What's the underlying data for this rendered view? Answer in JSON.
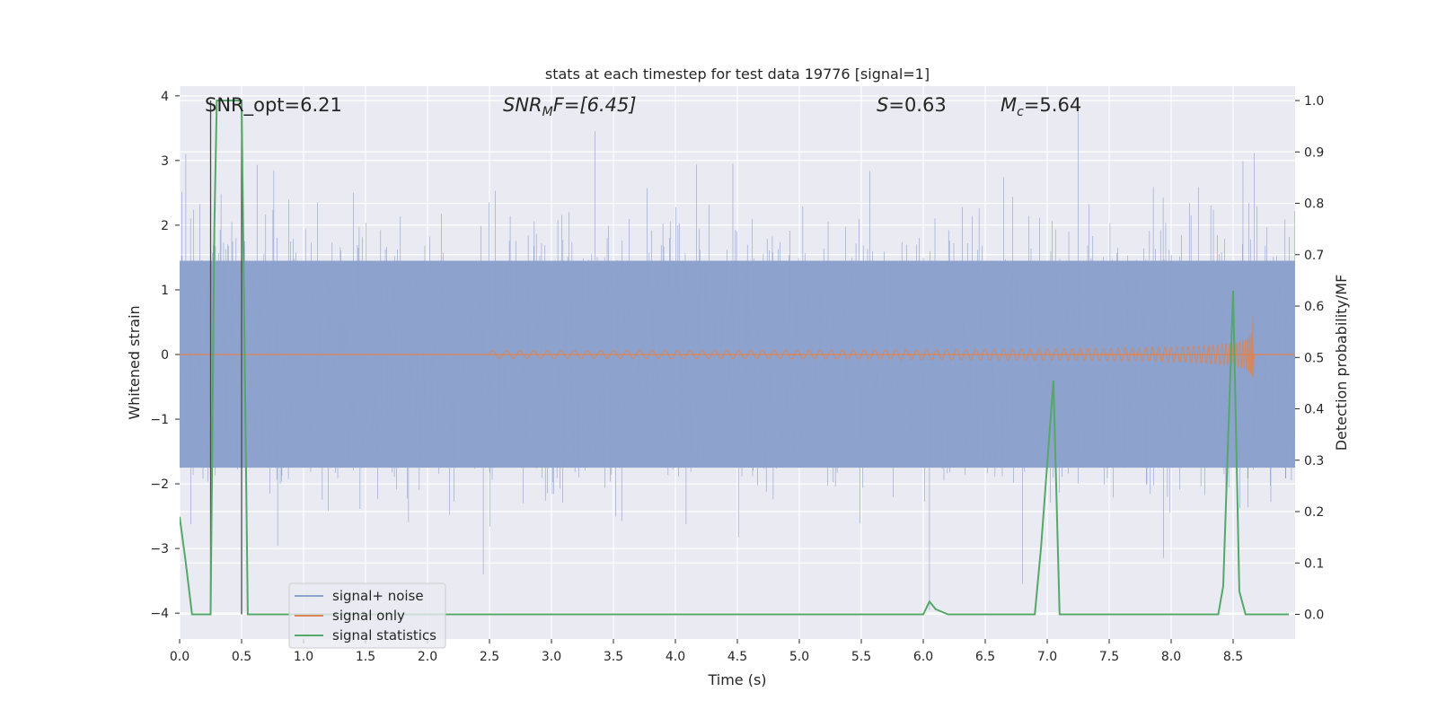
{
  "chart_data": {
    "type": "line",
    "title": "stats at each timestep for test data 19776 [signal=1]",
    "xlabel": "Time (s)",
    "ylabel": "Whitened strain",
    "y2label": "Detection probability/MF",
    "xlim": [
      0.0,
      9.0
    ],
    "ylim": [
      -4.4,
      4.15
    ],
    "y2lim": [
      -0.048,
      1.028
    ],
    "xticks": [
      "0.0",
      "0.5",
      "1.0",
      "1.5",
      "2.0",
      "2.5",
      "3.0",
      "3.5",
      "4.0",
      "4.5",
      "5.0",
      "5.5",
      "6.0",
      "6.5",
      "7.0",
      "7.5",
      "8.0",
      "8.5"
    ],
    "yticks": [
      "4",
      "3",
      "2",
      "1",
      "0",
      "−1",
      "−2",
      "−3",
      "−4"
    ],
    "y2ticks": [
      "1.0",
      "0.9",
      "0.8",
      "0.7",
      "0.6",
      "0.5",
      "0.4",
      "0.3",
      "0.2",
      "0.1",
      "0.0"
    ],
    "annotations": {
      "snr_opt": "SNR_opt=6.21",
      "snr_mf_sym": "SNR",
      "snr_mf_sub": "M",
      "snr_mf_rest": "F=[6.45]",
      "s_sym": "S",
      "s_rest": "=0.63",
      "mc_sym": "M",
      "mc_sub": "c",
      "mc_rest": "=5.64"
    },
    "series": [
      {
        "name": "signal+ noise",
        "color": "#8da2cd",
        "style": "noise band",
        "core_band": [
          -1.75,
          1.45
        ],
        "tallest_spikes": [
          {
            "t": 0.05,
            "v": 3.1
          },
          {
            "t": 0.5,
            "v": 3.1
          },
          {
            "t": 3.35,
            "v": 3.45
          },
          {
            "t": 7.25,
            "v": 3.75
          },
          {
            "t": 2.45,
            "v": -3.4
          },
          {
            "t": 6.05,
            "v": -3.95
          },
          {
            "t": 6.8,
            "v": -3.55
          }
        ]
      },
      {
        "name": "signal only",
        "color": "#dd8452",
        "style": "chirp",
        "start": 2.5,
        "merger_t": 8.66,
        "peak_amplitude": 0.6
      },
      {
        "name": "signal statistics",
        "color": "#55a868",
        "axis": "right",
        "t": [
          0.0,
          0.05,
          0.1,
          0.2,
          0.25,
          0.28,
          0.3,
          0.5,
          0.55,
          1.0,
          2.0,
          3.0,
          4.0,
          5.0,
          6.0,
          6.05,
          6.1,
          6.2,
          6.9,
          6.95,
          7.05,
          7.1,
          7.5,
          8.0,
          8.38,
          8.42,
          8.5,
          8.55,
          8.6,
          8.7,
          8.95
        ],
        "values": [
          0.19,
          0.1,
          0.0,
          0.0,
          0.0,
          0.75,
          1.0,
          1.0,
          0.0,
          0.0,
          0.0,
          0.0,
          0.0,
          0.0,
          0.0,
          0.025,
          0.01,
          0.0,
          0.0,
          0.13,
          0.455,
          0.0,
          0.0,
          0.0,
          0.0,
          0.055,
          0.63,
          0.045,
          0.0,
          0.0,
          0.0
        ]
      }
    ],
    "vertical_markers": [
      0.25,
      0.5
    ],
    "legend": {
      "position": "lower-left"
    }
  }
}
